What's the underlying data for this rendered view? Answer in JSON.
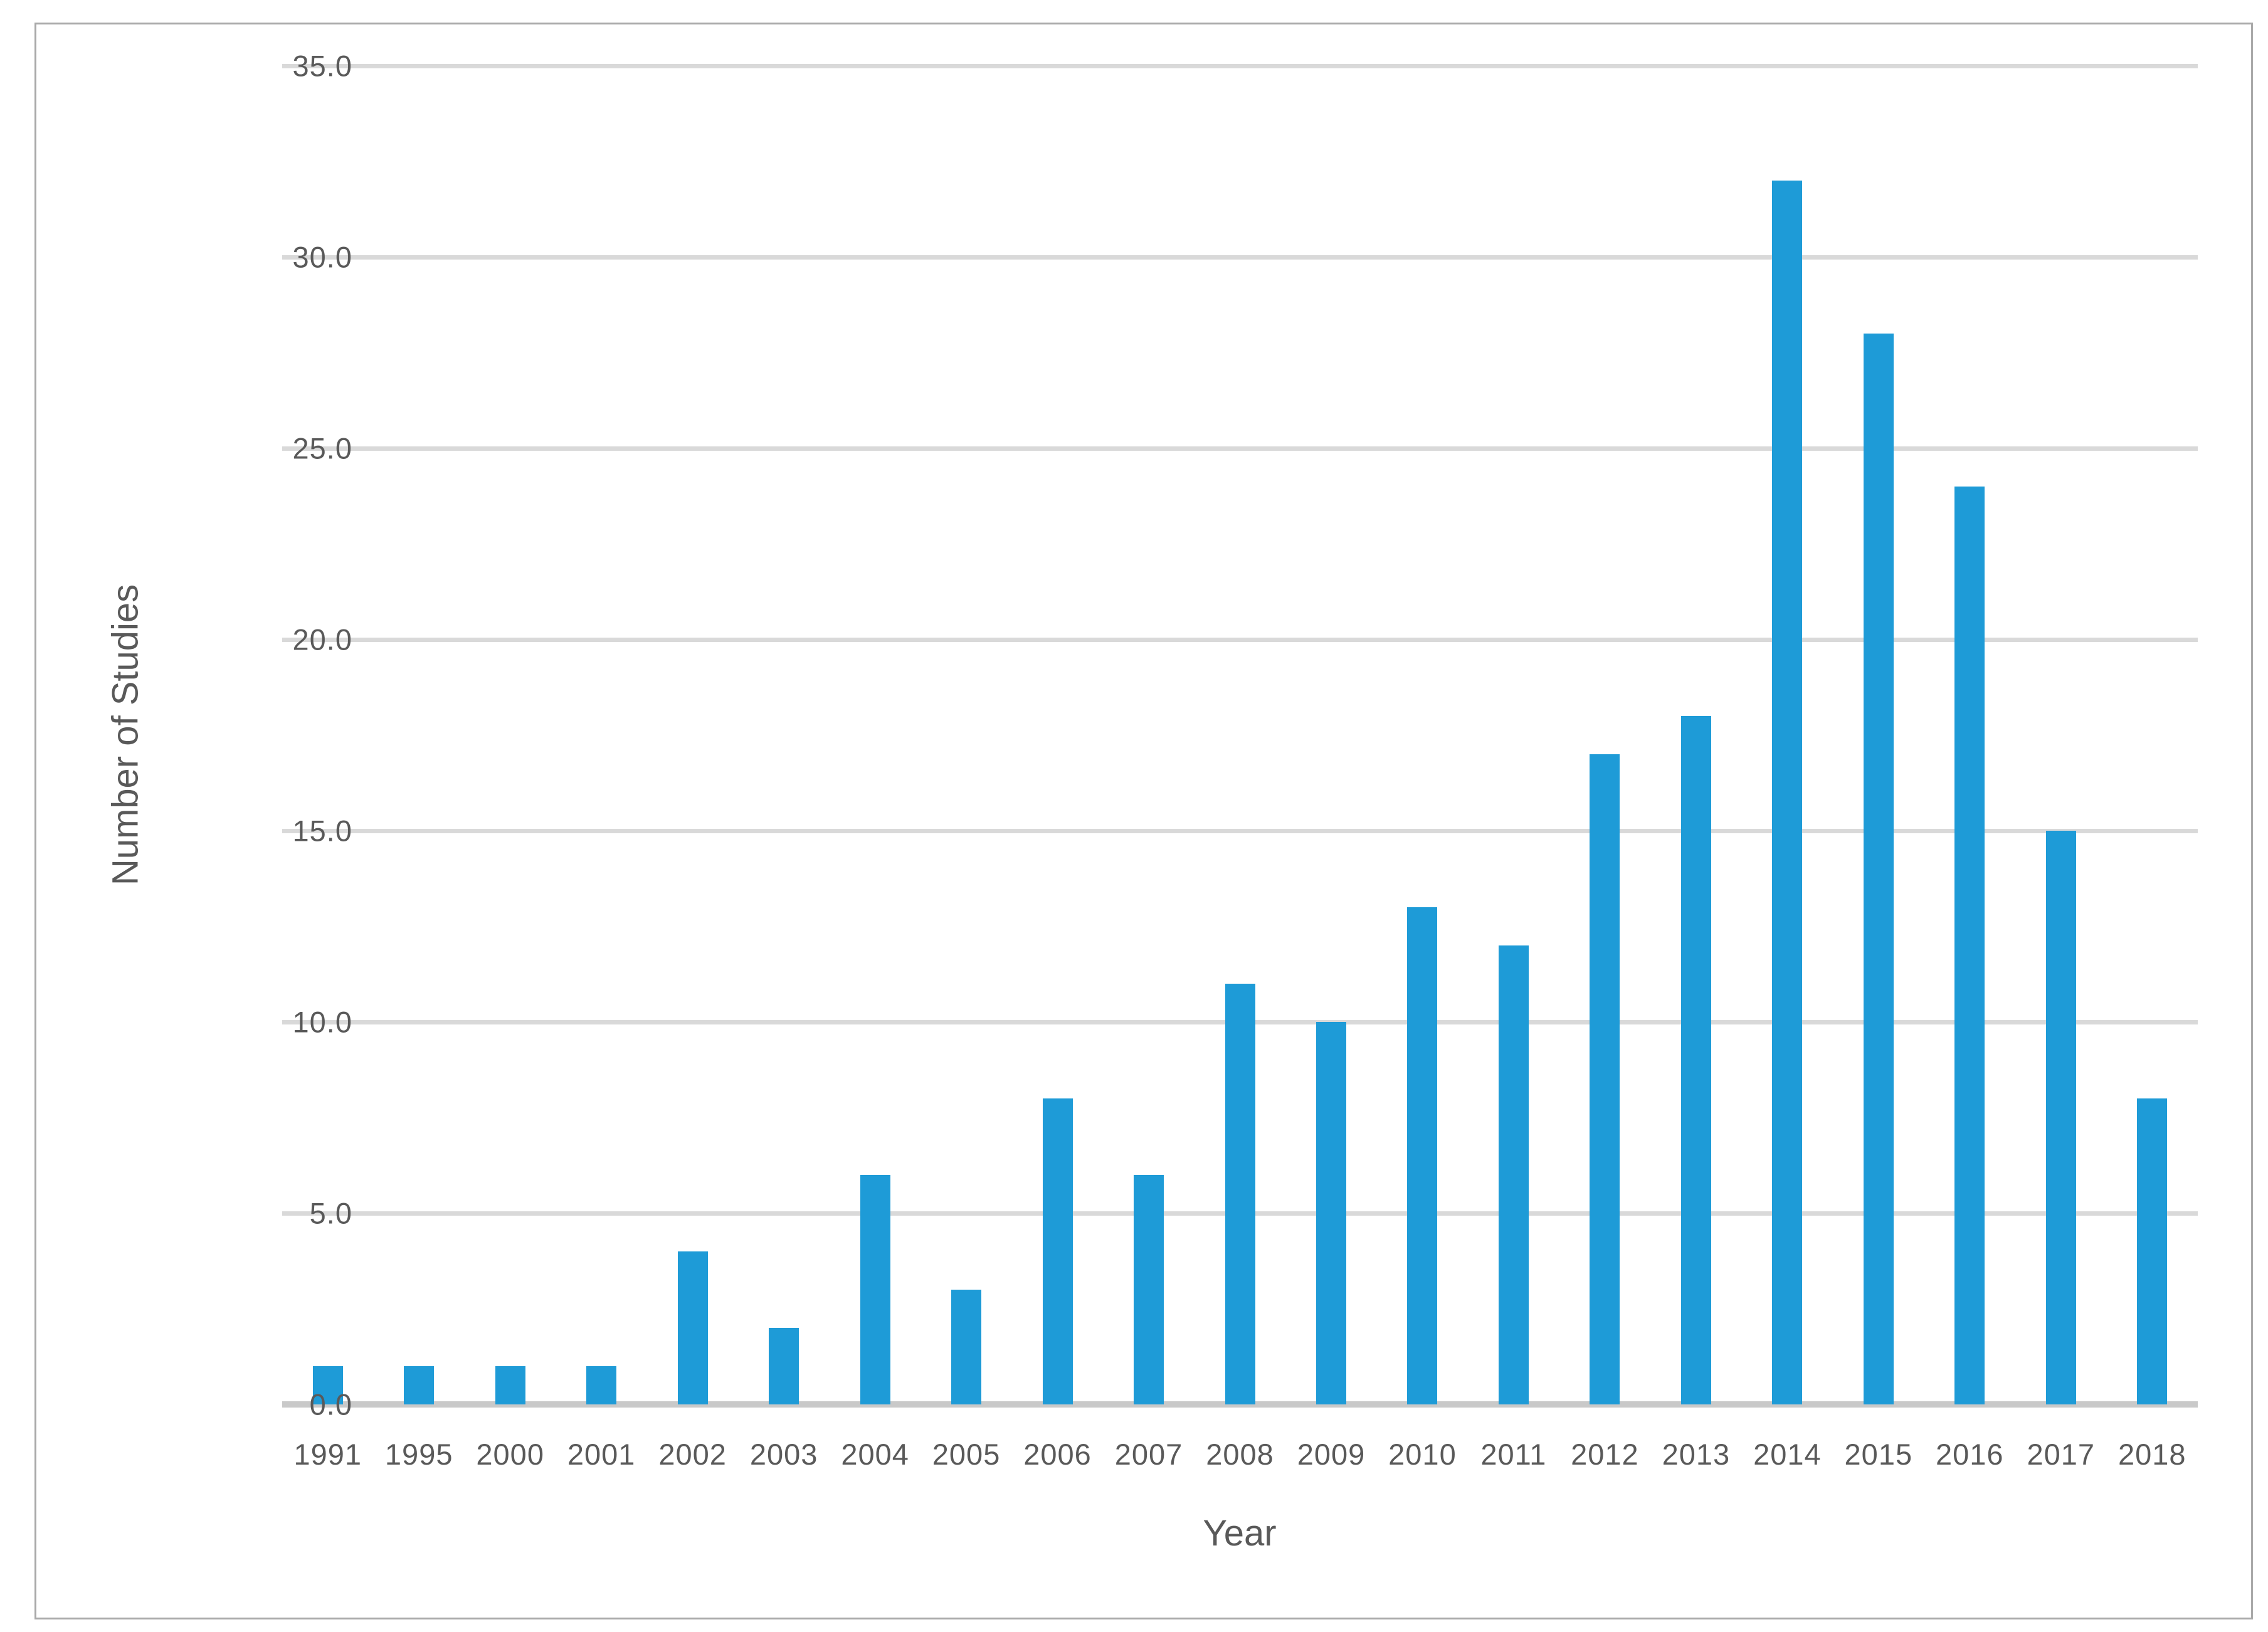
{
  "chart_data": {
    "type": "bar",
    "title": "",
    "xlabel": "Year",
    "ylabel": "Number of Studies",
    "categories": [
      "1991",
      "1995",
      "2000",
      "2001",
      "2002",
      "2003",
      "2004",
      "2005",
      "2006",
      "2007",
      "2008",
      "2009",
      "2010",
      "2011",
      "2012",
      "2013",
      "2014",
      "2015",
      "2016",
      "2017",
      "2018"
    ],
    "values": [
      1,
      1,
      1,
      1,
      4,
      2,
      6,
      3,
      8,
      6,
      11,
      10,
      13,
      12,
      17,
      18,
      32,
      28,
      24,
      15,
      8
    ],
    "ylim": [
      0,
      35
    ],
    "ytick_labels": [
      "0.0",
      "5.0",
      "10.0",
      "15.0",
      "20.0",
      "25.0",
      "30.0",
      "35.0"
    ],
    "ytick_values": [
      0,
      5,
      10,
      15,
      20,
      25,
      30,
      35
    ],
    "grid": true,
    "legend": null,
    "colors": {
      "bar": "#1e9bd7",
      "gridline": "#d9d9d9",
      "axis_line": "#c9c9c9",
      "tick_text": "#595959",
      "border": "#a9a9a9",
      "background": "#ffffff"
    }
  }
}
